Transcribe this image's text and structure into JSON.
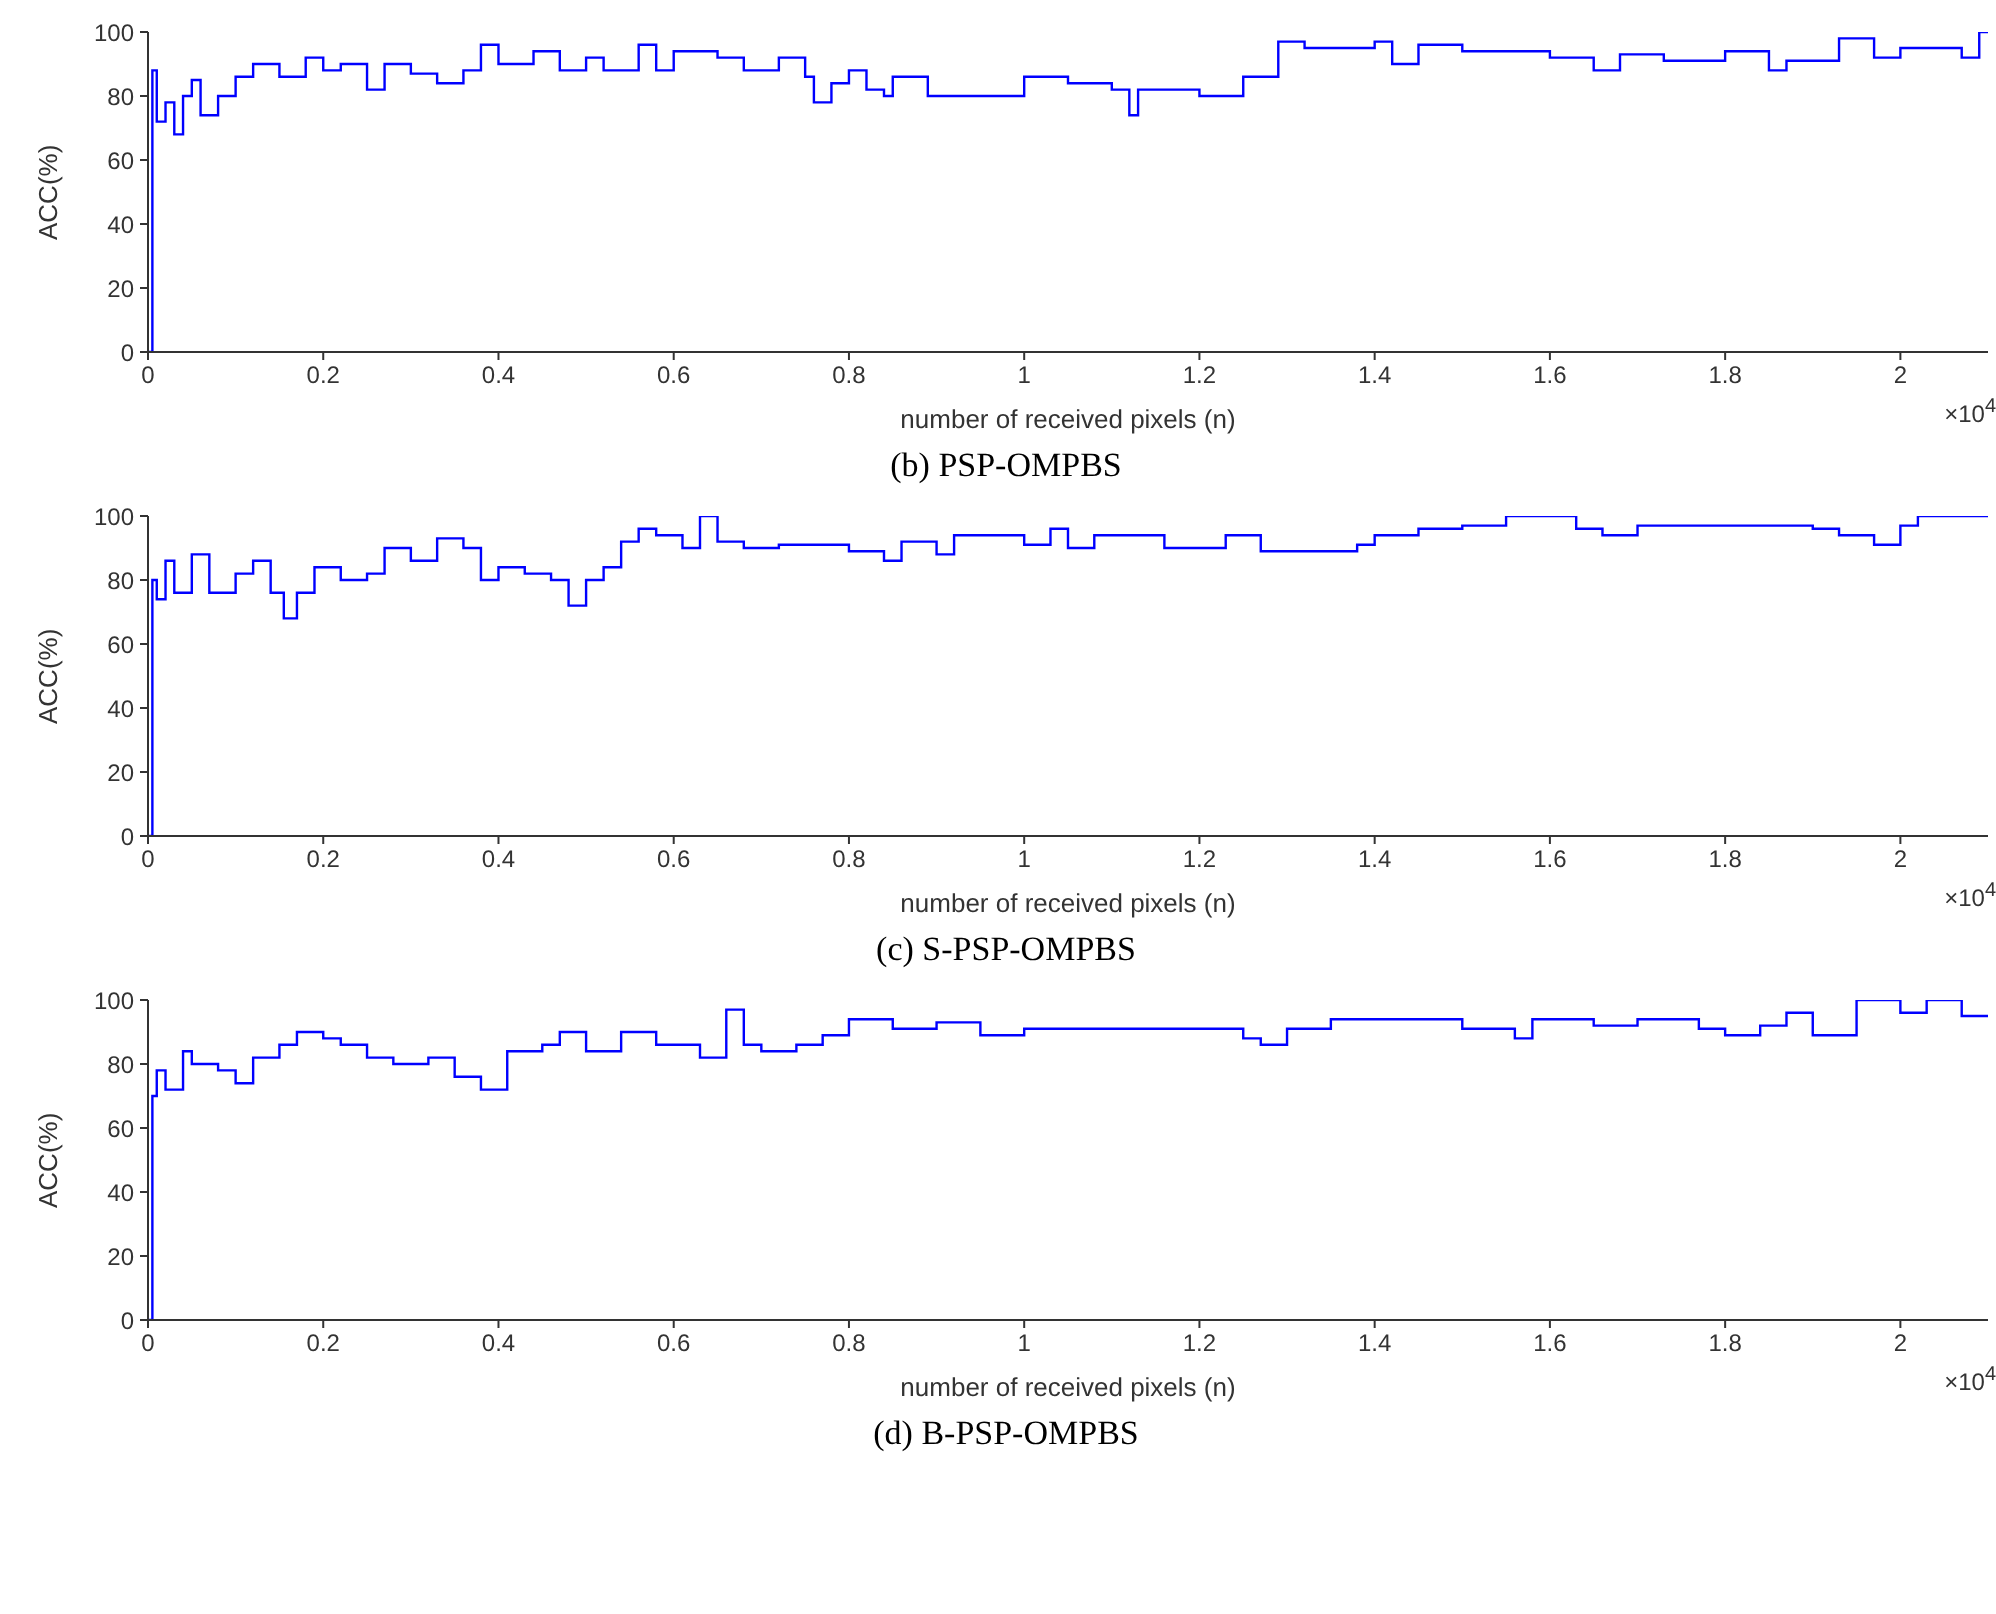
{
  "chart_data": [
    {
      "type": "step",
      "title": "(b) PSP-OMPBS",
      "xlabel": "number of received pixels (n)",
      "ylabel": "ACC(%)",
      "color": "#0000ff",
      "xlim": [
        0,
        2.1
      ],
      "ylim": [
        0,
        100
      ],
      "xticks": [
        0,
        0.2,
        0.4,
        0.6,
        0.8,
        1,
        1.2,
        1.4,
        1.6,
        1.8,
        2
      ],
      "yticks": [
        0,
        20,
        40,
        60,
        80,
        100
      ],
      "grid": false,
      "annotations": [
        "×10$^{4}$"
      ],
      "x": [
        0,
        0.005,
        0.01,
        0.02,
        0.03,
        0.04,
        0.05,
        0.06,
        0.08,
        0.1,
        0.12,
        0.15,
        0.18,
        0.2,
        0.22,
        0.25,
        0.27,
        0.3,
        0.33,
        0.36,
        0.38,
        0.4,
        0.44,
        0.47,
        0.5,
        0.52,
        0.56,
        0.58,
        0.6,
        0.65,
        0.68,
        0.72,
        0.75,
        0.76,
        0.78,
        0.8,
        0.82,
        0.84,
        0.85,
        0.89,
        1.0,
        1.05,
        1.1,
        1.12,
        1.13,
        1.2,
        1.25,
        1.29,
        1.32,
        1.4,
        1.42,
        1.45,
        1.5,
        1.6,
        1.65,
        1.68,
        1.73,
        1.8,
        1.85,
        1.87,
        1.93,
        1.97,
        2.0,
        2.07,
        2.09,
        2.1
      ],
      "values": [
        0,
        88,
        72,
        78,
        68,
        80,
        85,
        74,
        80,
        86,
        90,
        86,
        92,
        88,
        90,
        82,
        90,
        87,
        84,
        88,
        96,
        90,
        94,
        88,
        92,
        88,
        96,
        88,
        94,
        92,
        88,
        92,
        86,
        78,
        84,
        88,
        82,
        80,
        86,
        80,
        86,
        84,
        82,
        74,
        82,
        80,
        86,
        97,
        95,
        97,
        90,
        96,
        94,
        92,
        88,
        93,
        91,
        94,
        88,
        91,
        98,
        92,
        95,
        92,
        100,
        100
      ]
    },
    {
      "type": "step",
      "title": "(c) S-PSP-OMPBS",
      "xlabel": "number of received pixels (n)",
      "ylabel": "ACC(%)",
      "color": "#0000ff",
      "xlim": [
        0,
        2.1
      ],
      "ylim": [
        0,
        100
      ],
      "xticks": [
        0,
        0.2,
        0.4,
        0.6,
        0.8,
        1,
        1.2,
        1.4,
        1.6,
        1.8,
        2
      ],
      "yticks": [
        0,
        20,
        40,
        60,
        80,
        100
      ],
      "grid": false,
      "annotations": [
        "×10$^{4}$"
      ],
      "x": [
        0,
        0.005,
        0.01,
        0.02,
        0.03,
        0.05,
        0.07,
        0.1,
        0.12,
        0.14,
        0.155,
        0.17,
        0.19,
        0.22,
        0.25,
        0.27,
        0.3,
        0.33,
        0.36,
        0.38,
        0.4,
        0.43,
        0.46,
        0.48,
        0.5,
        0.52,
        0.54,
        0.56,
        0.58,
        0.61,
        0.63,
        0.65,
        0.68,
        0.72,
        0.8,
        0.84,
        0.86,
        0.9,
        0.92,
        1.0,
        1.03,
        1.05,
        1.08,
        1.16,
        1.23,
        1.27,
        1.38,
        1.4,
        1.45,
        1.5,
        1.55,
        1.63,
        1.66,
        1.7,
        1.9,
        1.93,
        1.97,
        2.0,
        2.02,
        2.1
      ],
      "values": [
        0,
        80,
        74,
        86,
        76,
        88,
        76,
        82,
        86,
        76,
        68,
        76,
        84,
        80,
        82,
        90,
        86,
        93,
        90,
        80,
        84,
        82,
        80,
        72,
        80,
        84,
        92,
        96,
        94,
        90,
        100,
        92,
        90,
        91,
        89,
        86,
        92,
        88,
        94,
        91,
        96,
        90,
        94,
        90,
        94,
        89,
        91,
        94,
        96,
        97,
        100,
        96,
        94,
        97,
        96,
        94,
        91,
        97,
        100,
        100
      ]
    },
    {
      "type": "step",
      "title": "(d) B-PSP-OMPBS",
      "xlabel": "number of received pixels (n)",
      "ylabel": "ACC(%)",
      "color": "#0000ff",
      "xlim": [
        0,
        2.1
      ],
      "ylim": [
        0,
        100
      ],
      "xticks": [
        0,
        0.2,
        0.4,
        0.6,
        0.8,
        1,
        1.2,
        1.4,
        1.6,
        1.8,
        2
      ],
      "yticks": [
        0,
        20,
        40,
        60,
        80,
        100
      ],
      "grid": false,
      "annotations": [
        "×10$^{4}$"
      ],
      "x": [
        0,
        0.005,
        0.01,
        0.02,
        0.04,
        0.05,
        0.08,
        0.1,
        0.12,
        0.15,
        0.17,
        0.2,
        0.22,
        0.25,
        0.28,
        0.32,
        0.35,
        0.38,
        0.41,
        0.45,
        0.47,
        0.5,
        0.54,
        0.58,
        0.63,
        0.66,
        0.68,
        0.7,
        0.74,
        0.77,
        0.8,
        0.85,
        0.9,
        0.95,
        1.0,
        1.25,
        1.27,
        1.3,
        1.35,
        1.5,
        1.56,
        1.58,
        1.65,
        1.7,
        1.77,
        1.8,
        1.84,
        1.87,
        1.9,
        1.95,
        2.0,
        2.03,
        2.07,
        2.1
      ],
      "values": [
        0,
        70,
        78,
        72,
        84,
        80,
        78,
        74,
        82,
        86,
        90,
        88,
        86,
        82,
        80,
        82,
        76,
        72,
        84,
        86,
        90,
        84,
        90,
        86,
        82,
        97,
        86,
        84,
        86,
        89,
        94,
        91,
        93,
        89,
        91,
        88,
        86,
        91,
        94,
        91,
        88,
        94,
        92,
        94,
        91,
        89,
        92,
        96,
        89,
        100,
        96,
        100,
        95,
        95
      ]
    }
  ]
}
